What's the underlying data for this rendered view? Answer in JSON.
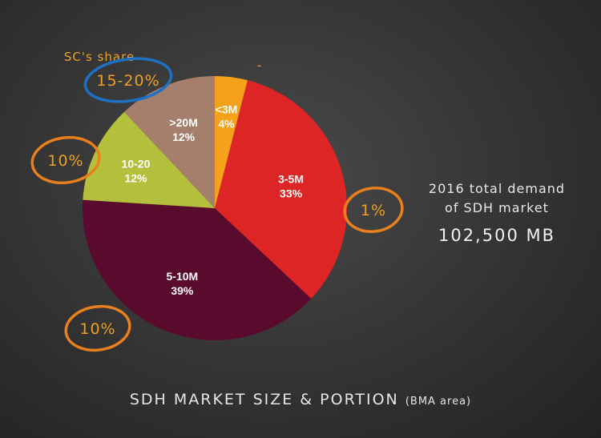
{
  "chart_data": {
    "type": "pie",
    "title": "SDH MARKET SIZE & PORTION",
    "subtitle": "(BMA area)",
    "start": "12 o'clock, clockwise",
    "slices": [
      {
        "label": "<3M",
        "value": 4,
        "value_label": "4%",
        "color": "#f5a11c",
        "sc_share": "-"
      },
      {
        "label": "3-5M",
        "value": 33,
        "value_label": "33%",
        "color": "#dd2525",
        "sc_share": "1%"
      },
      {
        "label": "5-10M",
        "value": 39,
        "value_label": "39%",
        "color": "#5a0a2c",
        "sc_share": "10%"
      },
      {
        "label": "10-20",
        "value": 12,
        "value_label": "12%",
        "color": "#b4bf3c",
        "sc_share": "10%"
      },
      {
        "label": ">20M",
        "value": 12,
        "value_label": "12%",
        "color": "#a57e6c",
        "sc_share": "15-20%"
      }
    ],
    "annotation_title": "SC's share"
  },
  "demand": {
    "line1": "2016 total demand",
    "line2": "of SDH market",
    "value": "102,500 MB"
  },
  "colors": {
    "annotation_orange": "#e8801e",
    "annotation_blue": "#1e70c2",
    "label_orange": "#f0a020",
    "label_text": "#ffffff"
  }
}
